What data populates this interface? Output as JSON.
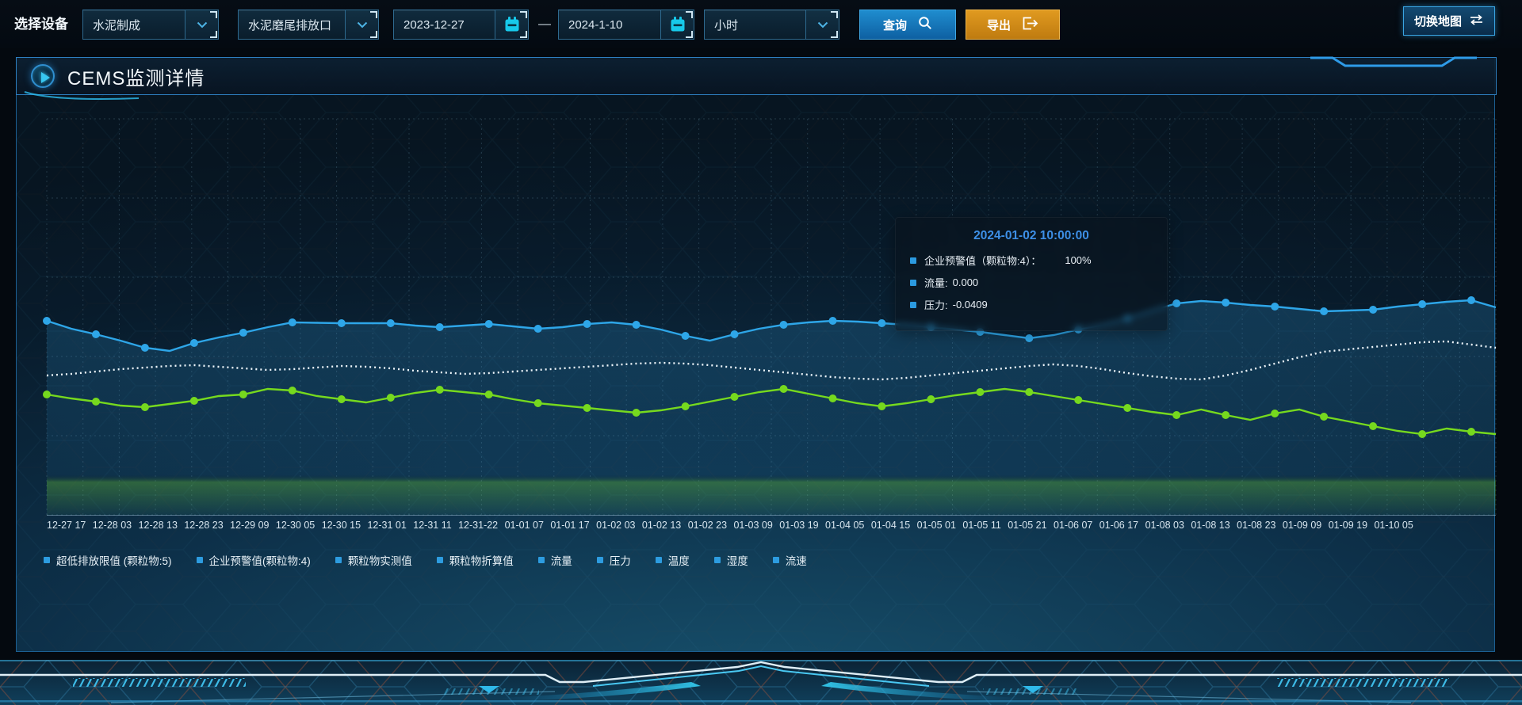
{
  "toolbar": {
    "device_label": "选择设备",
    "device_select": "水泥制成",
    "outlet_select": "水泥磨尾排放口",
    "date_start": "2023-12-27",
    "date_separator": "—",
    "date_end": "2024-1-10",
    "interval_select": "小时",
    "query_label": "查询",
    "export_label": "导出",
    "map_label": "切换地图"
  },
  "panel": {
    "title": "CEMS监测详情"
  },
  "tooltip": {
    "title": "2024-01-02 10:00:00",
    "rows": [
      {
        "label": "企业预警值（颗粒物:4）：",
        "value": "100%"
      },
      {
        "label": "流量:",
        "value": "0.000"
      },
      {
        "label": "压力:",
        "value": "-0.0409"
      }
    ]
  },
  "legend": [
    "超低排放限值 (颗粒物:5)",
    "企业预警值(颗粒物:4)",
    "颗粒物实测值",
    "颗粒物折算值",
    "流量",
    "压力",
    "温度",
    "湿度",
    "流速"
  ],
  "icons": {
    "device_chevron": "chevron-down",
    "calendar": "calendar",
    "search": "magnifier",
    "export": "export-arrow",
    "map_swap": "swap-arrows",
    "panel_play": "play"
  },
  "colors": {
    "accent_cyan": "#29b6f6",
    "query_button": "#1f8dcf",
    "export_button": "#d28a1a",
    "line_blue": "#2ea6e8",
    "line_green": "#76d91e",
    "line_dotted": "#eef6fb",
    "tooltip_title": "#3d8fe6",
    "legend_marker": "#2d9ce0"
  },
  "chart_data": {
    "type": "line",
    "title": "",
    "xlabel": "",
    "ylabel": "",
    "grid": true,
    "legend_position": "bottom",
    "y_axis_visible": false,
    "x_labels": [
      "12-27 17",
      "12-28 03",
      "12-28 13",
      "12-28 23",
      "12-29 09",
      "12-30 05",
      "12-30 15",
      "12-31 01",
      "12-31 11",
      "12-31-22",
      "01-01 07",
      "01-01 17",
      "01-02 03",
      "01-02 13",
      "01-02 23",
      "01-03 09",
      "01-03 19",
      "01-04 05",
      "01-04 15",
      "01-05 01",
      "01-05 11",
      "01-05 21",
      "01-06 07",
      "01-06 17",
      "01-08 03",
      "01-08 13",
      "01-08 23",
      "01-09 09",
      "01-09 19",
      "01-10 05"
    ],
    "series": [
      {
        "name": "企业预警值(颗粒物:4)",
        "color": "#2ea6e8",
        "style": "solid",
        "markers": true,
        "area": "rgba(44,140,196,0.26)",
        "values_pct_from_top": [
          51.0,
          53.0,
          54.4,
          56.0,
          57.8,
          58.6,
          56.6,
          55.2,
          54.0,
          52.6,
          51.4,
          51.5,
          51.6,
          51.6,
          51.6,
          52.2,
          52.6,
          52.2,
          51.8,
          52.4,
          53.0,
          52.6,
          51.8,
          51.4,
          52.0,
          53.2,
          54.8,
          56.0,
          54.4,
          53.0,
          52.0,
          51.4,
          51.0,
          51.2,
          51.6,
          52.0,
          52.6,
          53.2,
          53.8,
          54.6,
          55.4,
          54.6,
          53.2,
          52.0,
          50.4,
          48.4,
          46.6,
          46.0,
          46.4,
          47.0,
          47.4,
          48.0,
          48.6,
          48.4,
          48.2,
          47.4,
          46.8,
          46.2,
          45.8,
          47.6
        ]
      },
      {
        "name": "流量",
        "color": "#eef6fb",
        "style": "dotted",
        "markers": false,
        "area": "none",
        "values_pct_from_top": [
          64.8,
          64.4,
          63.8,
          63.2,
          62.8,
          62.4,
          62.2,
          62.6,
          63.0,
          63.4,
          63.2,
          62.8,
          62.4,
          62.6,
          63.0,
          63.6,
          64.0,
          64.4,
          64.2,
          63.8,
          63.4,
          63.0,
          62.6,
          62.2,
          61.8,
          61.6,
          61.8,
          62.2,
          62.8,
          63.4,
          64.0,
          64.6,
          65.2,
          65.6,
          65.8,
          65.4,
          64.8,
          64.2,
          63.6,
          63.0,
          62.4,
          62.0,
          62.4,
          63.2,
          64.2,
          65.0,
          65.6,
          65.8,
          64.8,
          63.4,
          61.8,
          60.2,
          58.8,
          58.2,
          57.6,
          57.0,
          56.4,
          56.2,
          57.0,
          57.8
        ]
      },
      {
        "name": "压力",
        "color": "#76d91e",
        "style": "solid",
        "markers": true,
        "area": "rgba(120,216,34,0.30)",
        "values_pct_from_top": [
          69.6,
          70.6,
          71.4,
          72.4,
          72.8,
          72.0,
          71.2,
          70.0,
          69.6,
          68.2,
          68.6,
          70.0,
          70.8,
          71.6,
          70.4,
          69.2,
          68.4,
          69.0,
          69.6,
          70.8,
          71.8,
          72.4,
          73.0,
          73.6,
          74.2,
          73.6,
          72.6,
          71.4,
          70.2,
          69.0,
          68.2,
          69.4,
          70.6,
          71.8,
          72.6,
          71.8,
          70.8,
          69.8,
          69.0,
          68.2,
          69.0,
          70.0,
          71.0,
          72.0,
          73.0,
          74.0,
          74.8,
          73.4,
          74.8,
          76.0,
          74.4,
          73.4,
          75.2,
          76.4,
          77.6,
          78.8,
          79.6,
          78.2,
          79.0,
          79.6
        ]
      }
    ]
  }
}
